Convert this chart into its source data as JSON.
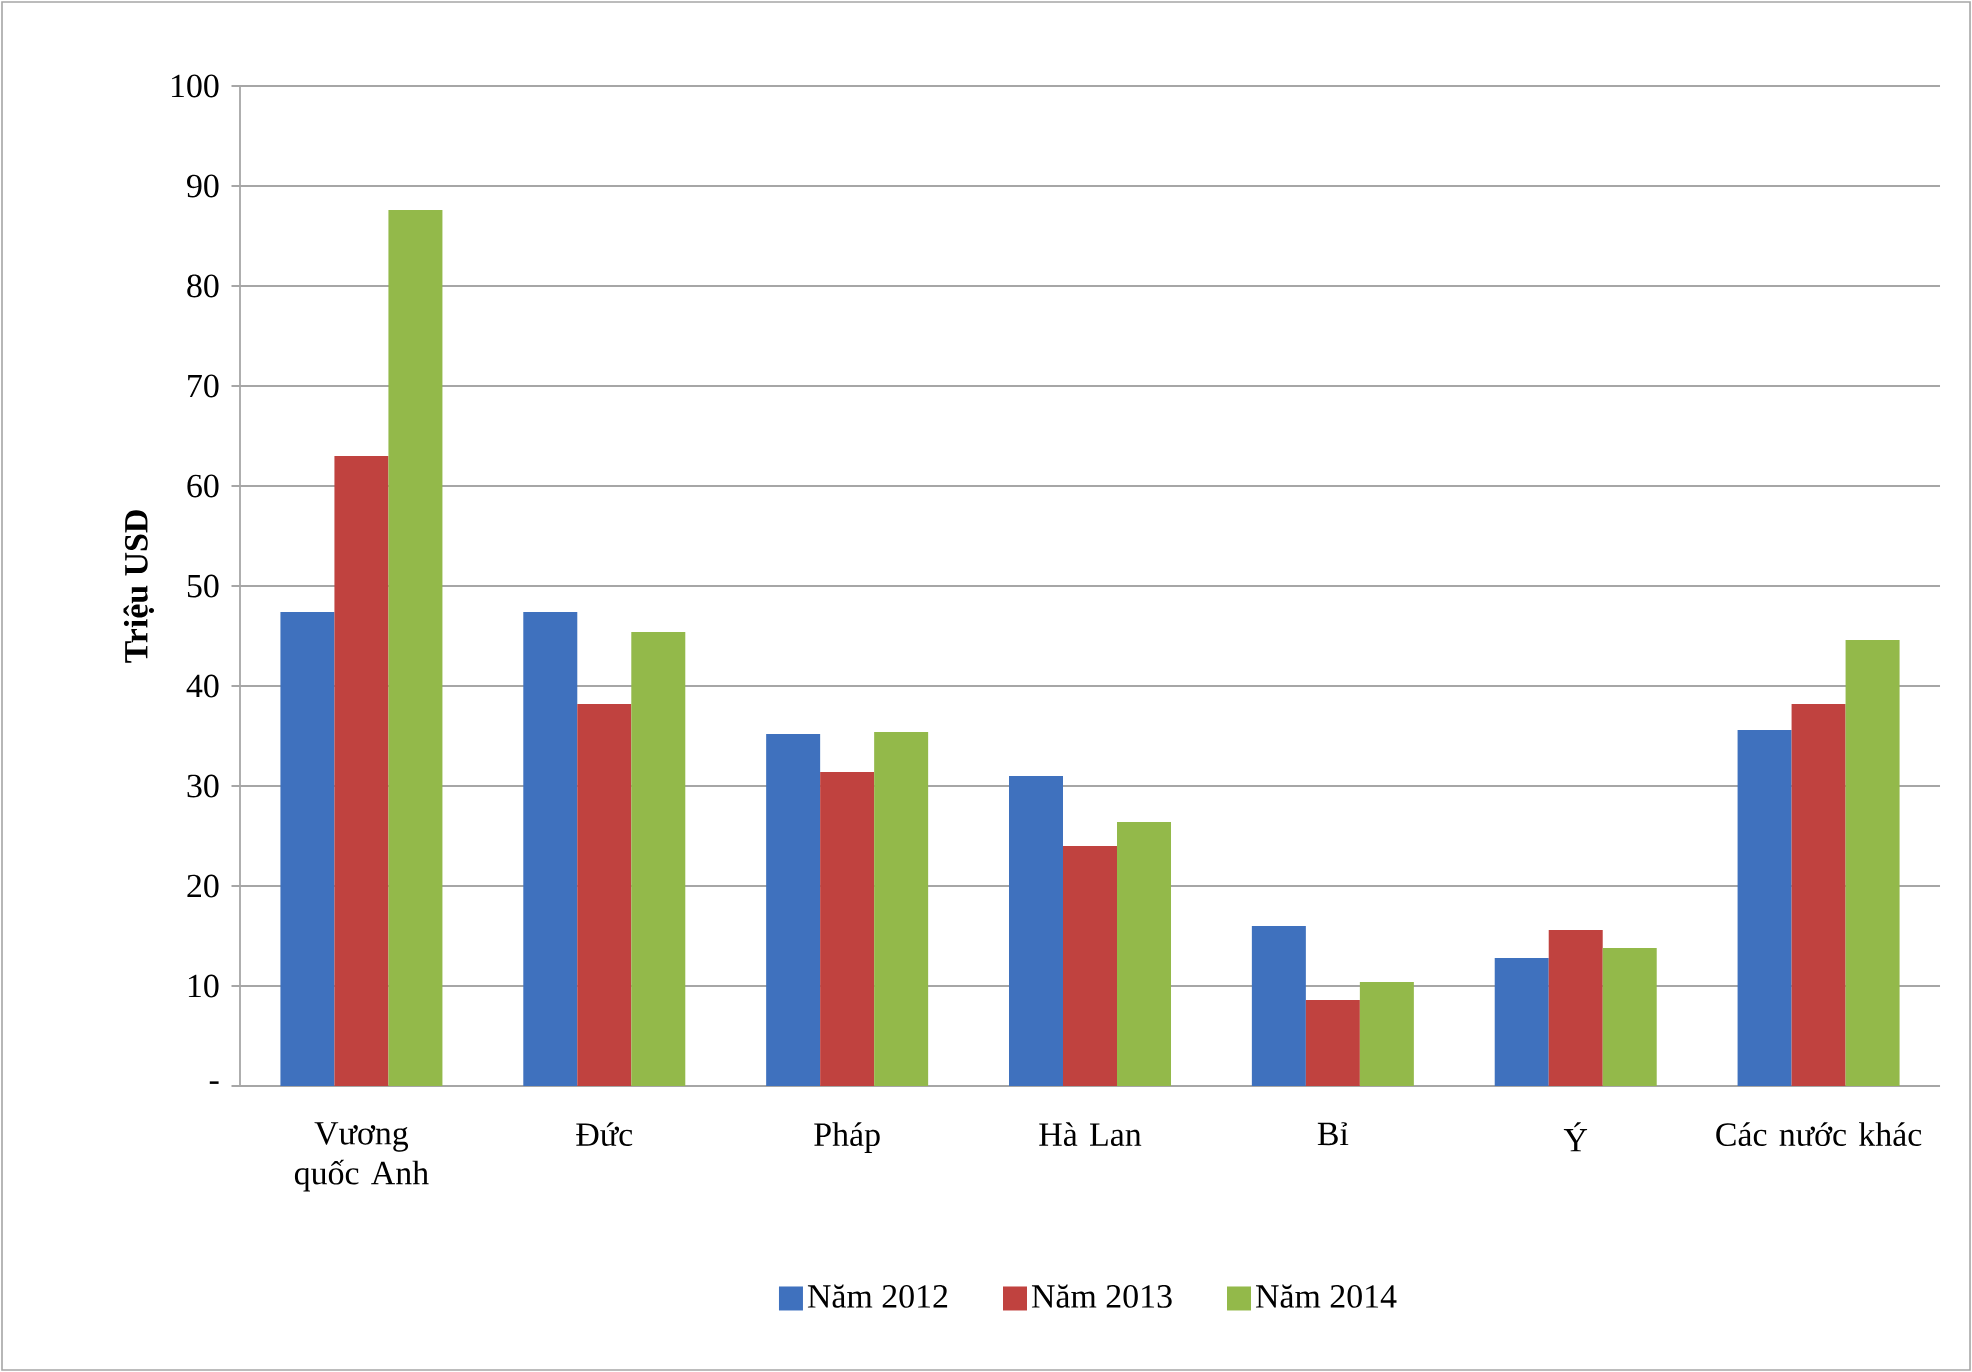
{
  "chart_data": {
    "type": "bar",
    "ylabel": "Triệu USD",
    "categories": [
      "Vương quốc Anh",
      "Đức",
      "Pháp",
      "Hà Lan",
      "Bỉ",
      "Ý",
      "Các nước khác"
    ],
    "series": [
      {
        "name": "Năm 2012",
        "color": "#3f71be",
        "values": [
          47.4,
          47.4,
          35.2,
          31,
          16,
          12.8,
          35.6
        ]
      },
      {
        "name": "Năm 2013",
        "color": "#c0423f",
        "values": [
          63,
          38.2,
          31.4,
          24,
          8.6,
          15.6,
          38.2
        ]
      },
      {
        "name": "Năm 2014",
        "color": "#93b94a",
        "values": [
          87.6,
          45.4,
          35.4,
          26.4,
          10.4,
          13.8,
          44.6
        ]
      }
    ],
    "ylim": [
      0,
      100
    ],
    "yticks": [
      {
        "value": 0,
        "label": "-"
      },
      10,
      20,
      30,
      40,
      50,
      60,
      70,
      80,
      90,
      100
    ],
    "grid": "y",
    "legend": "bottom"
  }
}
